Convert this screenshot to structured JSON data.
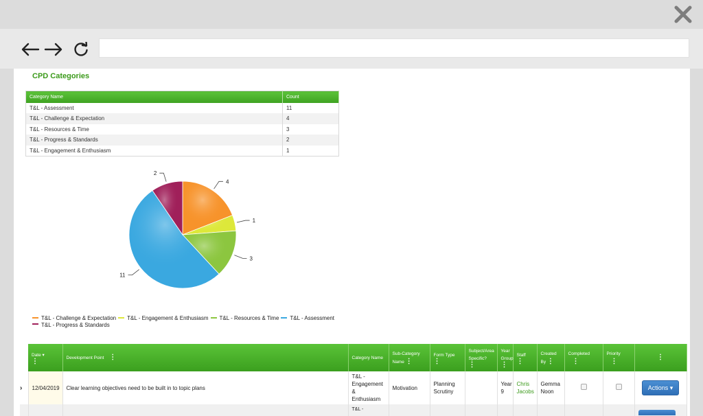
{
  "browser": {
    "url": ""
  },
  "page": {
    "title": "CPD Categories"
  },
  "categories_table": {
    "headers": [
      "Category Name",
      "Count"
    ],
    "rows": [
      [
        "T&L - Assessment",
        "11"
      ],
      [
        "T&L - Challenge & Expectation",
        "4"
      ],
      [
        "T&L - Resources & Time",
        "3"
      ],
      [
        "T&L - Progress & Standards",
        "2"
      ],
      [
        "T&L - Engagement & Enthusiasm",
        "1"
      ]
    ]
  },
  "chart_data": {
    "type": "pie",
    "slices": [
      {
        "name": "T&L - Challenge & Expectation",
        "value": 4,
        "color": "#f7932b"
      },
      {
        "name": "T&L - Engagement & Enthusiasm",
        "value": 1,
        "color": "#dde83a"
      },
      {
        "name": "T&L - Resources & Time",
        "value": 3,
        "color": "#8cc63f"
      },
      {
        "name": "T&L - Assessment",
        "value": 11,
        "color": "#3aa8e0"
      },
      {
        "name": "T&L - Progress & Standards",
        "value": 2,
        "color": "#a0205a"
      }
    ],
    "labels": [
      "4",
      "1",
      "3",
      "11",
      "2"
    ],
    "legend_position": "bottom-left"
  },
  "dev_table": {
    "headers": {
      "date": "Date",
      "development_point": "Development Point",
      "category_name": "Category Name",
      "sub_category": "Sub-Category Name",
      "form_type": "Form Type",
      "subject": "Subject/Area Specific?",
      "year_group": "Year Group",
      "staff": "Staff",
      "created_by": "Created By",
      "completed": "Completed",
      "priority": "Priority"
    },
    "row1": {
      "date": "12/04/2019",
      "development_point": "Clear learning objectives need to be built in to topic plans",
      "category_name": "T&L - Engagement & Enthusiasm",
      "sub_category": "Motivation",
      "form_type": "Planning Scrutiny",
      "subject": "",
      "year_group": "Year 9",
      "staff": "Chris Jacobs",
      "created_by": "Gemma Noon",
      "actions": "Actions ▾"
    },
    "row2": {
      "category_name_partial": "T&L -"
    }
  },
  "colors": {
    "accent_green": "#3ea221",
    "title_green": "#3b9a1a",
    "action_blue": "#2f6fb7"
  }
}
